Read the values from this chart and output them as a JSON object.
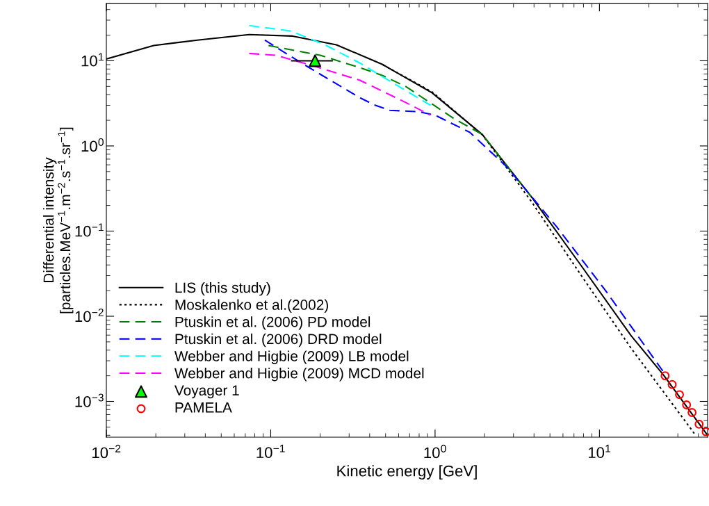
{
  "chart_data": {
    "type": "line",
    "xlabel": "Kinetic energy [GeV]",
    "ylabel": "Differential intensity\n[particles.MeV$^{−1}$.m$^{−2}$.s$^{−1}$.sr$^{−1}$]",
    "log": "xy",
    "grid": false,
    "legend": "bottom left",
    "xlim": [
      0.01,
      45.5
    ],
    "ylim": [
      0.00038,
      47
    ],
    "xticks": [
      {
        "value": 0.01,
        "label": "10$^{−2}$"
      },
      {
        "value": 0.1,
        "label": "10$^{−1}$"
      },
      {
        "value": 1,
        "label": "10$^{0}$"
      },
      {
        "value": 10,
        "label": "10$^{1}$"
      }
    ],
    "yticks": [
      {
        "value": 0.001,
        "label": "10$^{−3}$"
      },
      {
        "value": 0.01,
        "label": "10$^{−2}$"
      },
      {
        "value": 0.1,
        "label": "10$^{−1}$"
      },
      {
        "value": 1,
        "label": "10$^{0}$"
      },
      {
        "value": 10,
        "label": "10$^{1}$"
      }
    ],
    "series": [
      {
        "name": "LIS (this study)",
        "color": "#000000",
        "line_style": "solid",
        "x": [
          0.01,
          0.0194,
          0.0358,
          0.074,
          0.136,
          0.251,
          0.482,
          0.96,
          1.94,
          3.87,
          7.8,
          15.6,
          24.6,
          45.5
        ],
        "values": [
          10.5,
          15.1,
          17.5,
          20.3,
          19.5,
          15.4,
          9.0,
          4.2,
          1.36,
          0.25,
          0.0385,
          0.0059,
          0.00203,
          0.0004
        ]
      },
      {
        "name": "Moskalenko et al.(2002)",
        "color": "#000000",
        "line_style": "dotted",
        "x": [
          0.48,
          0.96,
          1.94,
          3.87,
          7.8,
          15.6,
          38.5
        ],
        "values": [
          9.0,
          4.3,
          1.35,
          0.22,
          0.0296,
          0.0042,
          0.0004
        ]
      },
      {
        "name": "Ptuskin et al. (2006) PD model",
        "color": "#008000",
        "line_style": "dashed",
        "x": [
          0.097,
          0.2,
          0.349,
          0.48,
          0.665,
          1.28,
          1.94,
          3.87
        ],
        "values": [
          15.1,
          11.6,
          8.3,
          6.7,
          4.98,
          2.14,
          1.36,
          0.25
        ]
      },
      {
        "name": "Ptuskin et al. (2006) DRD model",
        "color": "#0000ff",
        "line_style": "dashed",
        "x": [
          0.092,
          0.154,
          0.221,
          0.349,
          0.424,
          0.53,
          0.784,
          1.0,
          1.63,
          2.75,
          5.5,
          10.9,
          24.6
        ],
        "values": [
          17.5,
          9.4,
          6.2,
          3.68,
          3.05,
          2.62,
          2.53,
          2.3,
          1.44,
          0.56,
          0.112,
          0.02,
          0.0022
        ]
      },
      {
        "name": "Webber and Higbie (2009) LB model",
        "color": "#00ffff",
        "line_style": "dashed",
        "x": [
          0.074,
          0.132,
          0.214,
          0.349,
          0.665,
          0.94
        ],
        "values": [
          25.9,
          22.4,
          15.4,
          9.4,
          4.45,
          3.0
        ]
      },
      {
        "name": "Webber and Higbie (2009) MCD model",
        "color": "#ff00ff",
        "line_style": "dashed",
        "x": [
          0.074,
          0.108,
          0.182,
          0.349,
          0.665,
          0.935
        ],
        "values": [
          12.2,
          11.6,
          8.7,
          5.9,
          3.23,
          2.3
        ]
      },
      {
        "name": "Voyager 1",
        "type": "scatter",
        "marker": "triangle",
        "color": "#00ff00",
        "x": [
          0.186
        ],
        "values": [
          10
        ],
        "xerrors": [
          [
            0.133,
            0.239
          ]
        ]
      },
      {
        "name": "PAMELA",
        "type": "scatter",
        "marker": "circle",
        "color": "#ff0000",
        "x": [
          25.1,
          27.7,
          30.7,
          33.9,
          36.6,
          40.4,
          44.6
        ],
        "values": [
          0.002,
          0.00158,
          0.0012,
          0.00091,
          0.00074,
          0.00054,
          0.00044
        ]
      }
    ]
  }
}
